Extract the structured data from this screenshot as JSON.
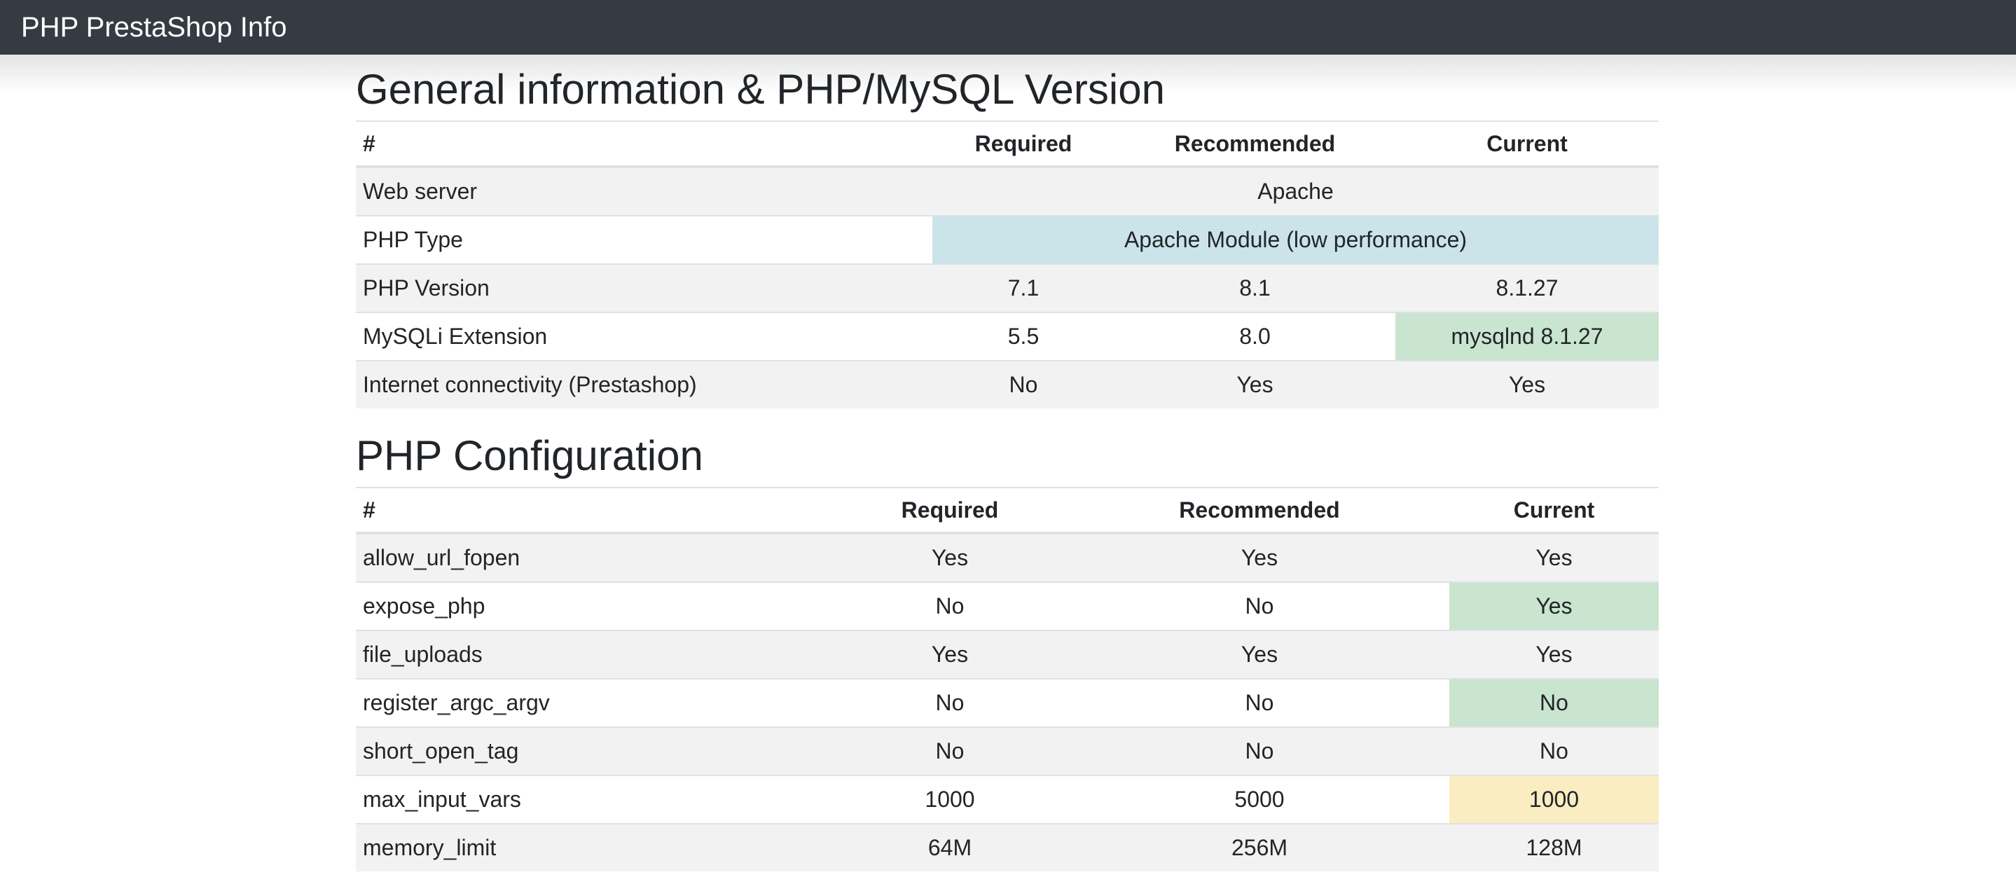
{
  "navbar": {
    "brand": "PHP PrestaShop Info"
  },
  "colors": {
    "navbar_bg": "#353b43",
    "text": "#212529",
    "table_border": "#dee2e6",
    "row_stripe": "#f2f2f2",
    "info_cell": "#cbe4ea",
    "success_cell": "#c9e5cf",
    "warning_cell": "#faedc1"
  },
  "sections": [
    {
      "title": "General information & PHP/MySQL Version",
      "columns": [
        "#",
        "Required",
        "Recommended",
        "Current"
      ],
      "rows": [
        {
          "label": "Web server",
          "merged": "Apache",
          "merged_status": "info"
        },
        {
          "label": "PHP Type",
          "merged": "Apache Module (low performance)",
          "merged_status": "info"
        },
        {
          "label": "PHP Version",
          "required": "7.1",
          "recommended": "8.1",
          "current": "8.1.27",
          "current_status": "success"
        },
        {
          "label": "MySQLi Extension",
          "required": "5.5",
          "recommended": "8.0",
          "current": "mysqlnd 8.1.27",
          "current_status": "success"
        },
        {
          "label": "Internet connectivity (Prestashop)",
          "required": "No",
          "recommended": "Yes",
          "current": "Yes",
          "current_status": "success"
        }
      ]
    },
    {
      "title": "PHP Configuration",
      "columns": [
        "#",
        "Required",
        "Recommended",
        "Current"
      ],
      "rows": [
        {
          "label": "allow_url_fopen",
          "required": "Yes",
          "recommended": "Yes",
          "current": "Yes",
          "current_status": "success"
        },
        {
          "label": "expose_php",
          "required": "No",
          "recommended": "No",
          "current": "Yes",
          "current_status": "success"
        },
        {
          "label": "file_uploads",
          "required": "Yes",
          "recommended": "Yes",
          "current": "Yes",
          "current_status": "success"
        },
        {
          "label": "register_argc_argv",
          "required": "No",
          "recommended": "No",
          "current": "No",
          "current_status": "success"
        },
        {
          "label": "short_open_tag",
          "required": "No",
          "recommended": "No",
          "current": "No",
          "current_status": "success"
        },
        {
          "label": "max_input_vars",
          "required": "1000",
          "recommended": "5000",
          "current": "1000",
          "current_status": "warning"
        },
        {
          "label": "memory_limit",
          "required": "64M",
          "recommended": "256M",
          "current": "128M",
          "current_status": "warning"
        }
      ]
    }
  ]
}
